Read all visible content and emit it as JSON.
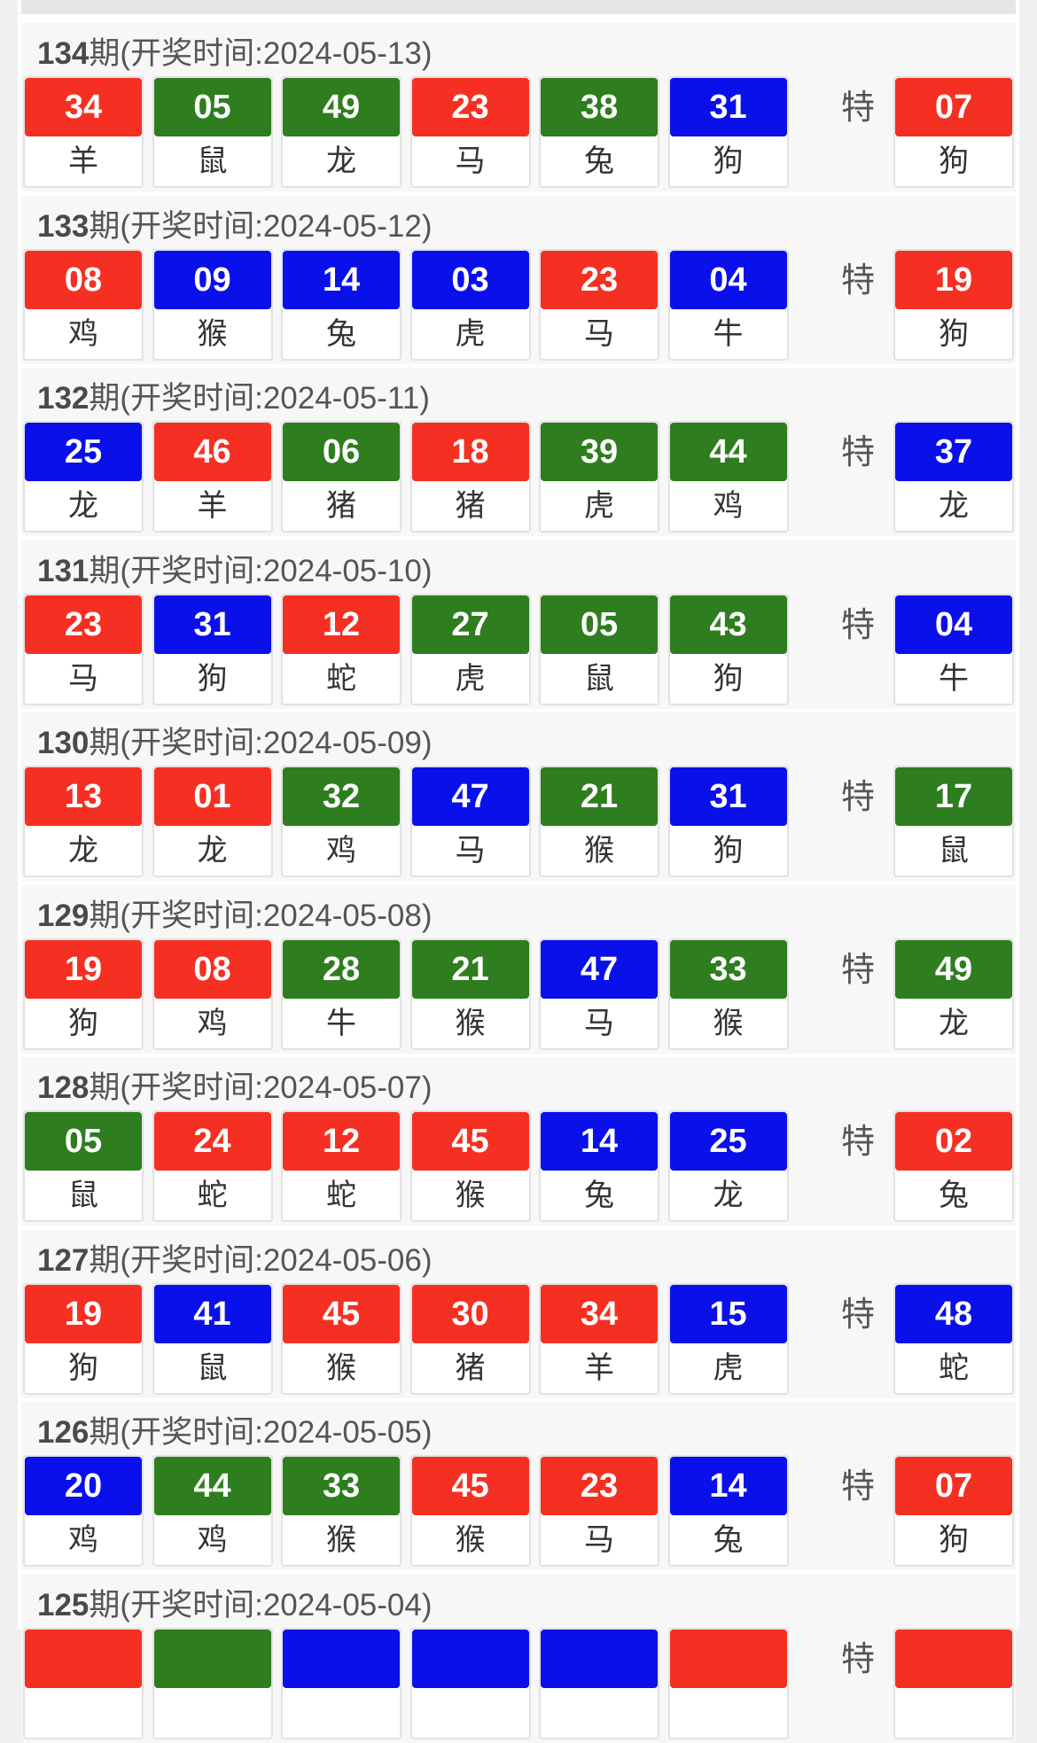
{
  "colors": {
    "red": "#f53022",
    "green": "#2e7d1f",
    "blue": "#0a10ea"
  },
  "special_label": "特",
  "header_template": {
    "suffix_period": "期",
    "prefix": "(开奖时间:",
    "suffix": ")"
  },
  "draws": [
    {
      "period": "134",
      "date": "2024-05-13",
      "balls": [
        {
          "n": "34",
          "z": "羊",
          "c": "red"
        },
        {
          "n": "05",
          "z": "鼠",
          "c": "green"
        },
        {
          "n": "49",
          "z": "龙",
          "c": "green"
        },
        {
          "n": "23",
          "z": "马",
          "c": "red"
        },
        {
          "n": "38",
          "z": "兔",
          "c": "green"
        },
        {
          "n": "31",
          "z": "狗",
          "c": "blue"
        }
      ],
      "special": {
        "n": "07",
        "z": "狗",
        "c": "red"
      }
    },
    {
      "period": "133",
      "date": "2024-05-12",
      "balls": [
        {
          "n": "08",
          "z": "鸡",
          "c": "red"
        },
        {
          "n": "09",
          "z": "猴",
          "c": "blue"
        },
        {
          "n": "14",
          "z": "兔",
          "c": "blue"
        },
        {
          "n": "03",
          "z": "虎",
          "c": "blue"
        },
        {
          "n": "23",
          "z": "马",
          "c": "red"
        },
        {
          "n": "04",
          "z": "牛",
          "c": "blue"
        }
      ],
      "special": {
        "n": "19",
        "z": "狗",
        "c": "red"
      }
    },
    {
      "period": "132",
      "date": "2024-05-11",
      "balls": [
        {
          "n": "25",
          "z": "龙",
          "c": "blue"
        },
        {
          "n": "46",
          "z": "羊",
          "c": "red"
        },
        {
          "n": "06",
          "z": "猪",
          "c": "green"
        },
        {
          "n": "18",
          "z": "猪",
          "c": "red"
        },
        {
          "n": "39",
          "z": "虎",
          "c": "green"
        },
        {
          "n": "44",
          "z": "鸡",
          "c": "green"
        }
      ],
      "special": {
        "n": "37",
        "z": "龙",
        "c": "blue"
      }
    },
    {
      "period": "131",
      "date": "2024-05-10",
      "balls": [
        {
          "n": "23",
          "z": "马",
          "c": "red"
        },
        {
          "n": "31",
          "z": "狗",
          "c": "blue"
        },
        {
          "n": "12",
          "z": "蛇",
          "c": "red"
        },
        {
          "n": "27",
          "z": "虎",
          "c": "green"
        },
        {
          "n": "05",
          "z": "鼠",
          "c": "green"
        },
        {
          "n": "43",
          "z": "狗",
          "c": "green"
        }
      ],
      "special": {
        "n": "04",
        "z": "牛",
        "c": "blue"
      }
    },
    {
      "period": "130",
      "date": "2024-05-09",
      "balls": [
        {
          "n": "13",
          "z": "龙",
          "c": "red"
        },
        {
          "n": "01",
          "z": "龙",
          "c": "red"
        },
        {
          "n": "32",
          "z": "鸡",
          "c": "green"
        },
        {
          "n": "47",
          "z": "马",
          "c": "blue"
        },
        {
          "n": "21",
          "z": "猴",
          "c": "green"
        },
        {
          "n": "31",
          "z": "狗",
          "c": "blue"
        }
      ],
      "special": {
        "n": "17",
        "z": "鼠",
        "c": "green"
      }
    },
    {
      "period": "129",
      "date": "2024-05-08",
      "balls": [
        {
          "n": "19",
          "z": "狗",
          "c": "red"
        },
        {
          "n": "08",
          "z": "鸡",
          "c": "red"
        },
        {
          "n": "28",
          "z": "牛",
          "c": "green"
        },
        {
          "n": "21",
          "z": "猴",
          "c": "green"
        },
        {
          "n": "47",
          "z": "马",
          "c": "blue"
        },
        {
          "n": "33",
          "z": "猴",
          "c": "green"
        }
      ],
      "special": {
        "n": "49",
        "z": "龙",
        "c": "green"
      }
    },
    {
      "period": "128",
      "date": "2024-05-07",
      "balls": [
        {
          "n": "05",
          "z": "鼠",
          "c": "green"
        },
        {
          "n": "24",
          "z": "蛇",
          "c": "red"
        },
        {
          "n": "12",
          "z": "蛇",
          "c": "red"
        },
        {
          "n": "45",
          "z": "猴",
          "c": "red"
        },
        {
          "n": "14",
          "z": "兔",
          "c": "blue"
        },
        {
          "n": "25",
          "z": "龙",
          "c": "blue"
        }
      ],
      "special": {
        "n": "02",
        "z": "兔",
        "c": "red"
      }
    },
    {
      "period": "127",
      "date": "2024-05-06",
      "balls": [
        {
          "n": "19",
          "z": "狗",
          "c": "red"
        },
        {
          "n": "41",
          "z": "鼠",
          "c": "blue"
        },
        {
          "n": "45",
          "z": "猴",
          "c": "red"
        },
        {
          "n": "30",
          "z": "猪",
          "c": "red"
        },
        {
          "n": "34",
          "z": "羊",
          "c": "red"
        },
        {
          "n": "15",
          "z": "虎",
          "c": "blue"
        }
      ],
      "special": {
        "n": "48",
        "z": "蛇",
        "c": "blue"
      }
    },
    {
      "period": "126",
      "date": "2024-05-05",
      "balls": [
        {
          "n": "20",
          "z": "鸡",
          "c": "blue"
        },
        {
          "n": "44",
          "z": "鸡",
          "c": "green"
        },
        {
          "n": "33",
          "z": "猴",
          "c": "green"
        },
        {
          "n": "45",
          "z": "猴",
          "c": "red"
        },
        {
          "n": "23",
          "z": "马",
          "c": "red"
        },
        {
          "n": "14",
          "z": "兔",
          "c": "blue"
        }
      ],
      "special": {
        "n": "07",
        "z": "狗",
        "c": "red"
      }
    },
    {
      "period": "125",
      "date": "2024-05-04",
      "balls": [
        {
          "n": "",
          "z": "",
          "c": "red"
        },
        {
          "n": "",
          "z": "",
          "c": "green"
        },
        {
          "n": "",
          "z": "",
          "c": "blue"
        },
        {
          "n": "",
          "z": "",
          "c": "blue"
        },
        {
          "n": "",
          "z": "",
          "c": "blue"
        },
        {
          "n": "",
          "z": "",
          "c": "red"
        }
      ],
      "special": {
        "n": "",
        "z": "",
        "c": "red"
      }
    }
  ]
}
